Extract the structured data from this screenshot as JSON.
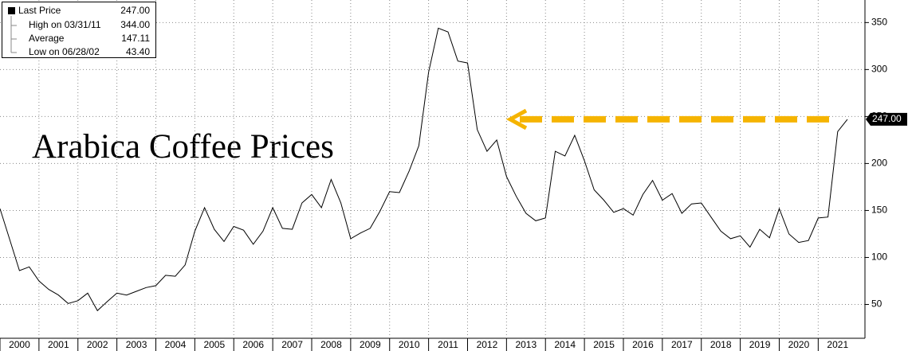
{
  "chart_data": {
    "type": "line",
    "annotation": "Arabica Coffee Prices",
    "arrow_color": "#f5b400",
    "x": [
      2000,
      2000.25,
      2000.5,
      2000.75,
      2001,
      2001.25,
      2001.5,
      2001.75,
      2002,
      2002.25,
      2002.5,
      2002.75,
      2003,
      2003.25,
      2003.5,
      2003.75,
      2004,
      2004.25,
      2004.5,
      2004.75,
      2005,
      2005.25,
      2005.5,
      2005.75,
      2006,
      2006.25,
      2006.5,
      2006.75,
      2007,
      2007.25,
      2007.5,
      2007.75,
      2008,
      2008.25,
      2008.5,
      2008.75,
      2009,
      2009.25,
      2009.5,
      2009.75,
      2010,
      2010.25,
      2010.5,
      2010.75,
      2011,
      2011.25,
      2011.5,
      2011.75,
      2012,
      2012.25,
      2012.5,
      2012.75,
      2013,
      2013.25,
      2013.5,
      2013.75,
      2014,
      2014.25,
      2014.5,
      2014.75,
      2015,
      2015.25,
      2015.5,
      2015.75,
      2016,
      2016.25,
      2016.5,
      2016.75,
      2017,
      2017.25,
      2017.5,
      2017.75,
      2018,
      2018.25,
      2018.5,
      2018.75,
      2019,
      2019.25,
      2019.5,
      2019.75,
      2020,
      2020.25,
      2020.5,
      2020.75,
      2021,
      2021.25,
      2021.5,
      2021.75
    ],
    "series": [
      {
        "name": "Last Price",
        "color": "#000000",
        "values": [
          152,
          119,
          86,
          90,
          75,
          66,
          60,
          51,
          54,
          62,
          43.4,
          53,
          62,
          60,
          64,
          68,
          70,
          81,
          80,
          92,
          128,
          153,
          130,
          117,
          133,
          129,
          114,
          128,
          153,
          131,
          130,
          158,
          167,
          153,
          183,
          158,
          120,
          126,
          131,
          149,
          170,
          169,
          192,
          219,
          297,
          344,
          340,
          309,
          307,
          236,
          213,
          225,
          186,
          165,
          147,
          139,
          142,
          213,
          208,
          230,
          203,
          172,
          161,
          148,
          152,
          145,
          167,
          182,
          161,
          168,
          147,
          157,
          158,
          143,
          128,
          120,
          123,
          111,
          130,
          121,
          152,
          125,
          116,
          118,
          142,
          143,
          234,
          247
        ],
        "last": {
          "value": 247,
          "label": "247.00"
        }
      }
    ],
    "stats": [
      {
        "name": "High on 03/31/11",
        "value": 344,
        "label": "344.00"
      },
      {
        "name": "Average",
        "value": 147.11,
        "label": "147.11"
      },
      {
        "name": "Low on 06/28/02",
        "value": 43.4,
        "label": "43.40"
      }
    ],
    "xlim": [
      2000,
      2022.2
    ],
    "xticks": [
      2000,
      2001,
      2002,
      2003,
      2004,
      2005,
      2006,
      2007,
      2008,
      2009,
      2010,
      2011,
      2012,
      2013,
      2014,
      2015,
      2016,
      2017,
      2018,
      2019,
      2020,
      2021
    ],
    "ylim": [
      14,
      374
    ],
    "yticks": [
      50,
      100,
      150,
      200,
      250,
      300,
      350
    ],
    "grid": true
  }
}
